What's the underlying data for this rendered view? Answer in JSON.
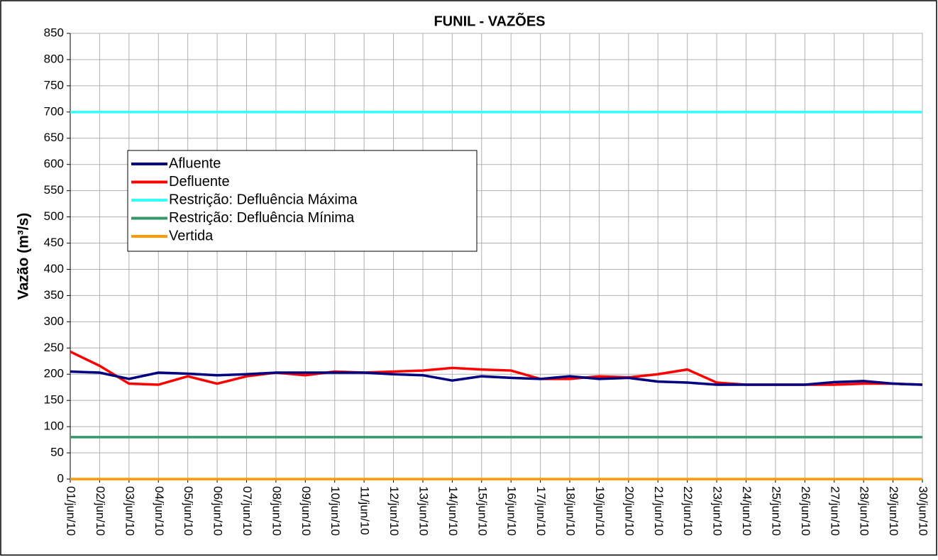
{
  "chart_data": {
    "type": "line",
    "title": "FUNIL - VAZÕES",
    "y_label": "Vazão (m³/s)",
    "categories": [
      "01/jun/10",
      "02/jun/10",
      "03/jun/10",
      "04/jun/10",
      "05/jun/10",
      "06/jun/10",
      "07/jun/10",
      "08/jun/10",
      "09/jun/10",
      "10/jun/10",
      "11/jun/10",
      "12/jun/10",
      "13/jun/10",
      "14/jun/10",
      "15/jun/10",
      "16/jun/10",
      "17/jun/10",
      "18/jun/10",
      "19/jun/10",
      "20/jun/10",
      "21/jun/10",
      "22/jun/10",
      "23/jun/10",
      "24/jun/10",
      "25/jun/10",
      "26/jun/10",
      "27/jun/10",
      "28/jun/10",
      "29/jun/10",
      "30/jun/10"
    ],
    "series": [
      {
        "name": "Afluente",
        "color": "#000080",
        "values": [
          205,
          203,
          191,
          203,
          201,
          198,
          200,
          203,
          203,
          203,
          203,
          200,
          198,
          188,
          196,
          193,
          191,
          196,
          191,
          193,
          186,
          184,
          180,
          180,
          180,
          180,
          185,
          187,
          182,
          180
        ]
      },
      {
        "name": "Defluente",
        "color": "#ff0000",
        "values": [
          243,
          216,
          182,
          180,
          196,
          182,
          196,
          203,
          198,
          205,
          203,
          205,
          207,
          212,
          209,
          207,
          191,
          191,
          196,
          194,
          200,
          209,
          184,
          180,
          180,
          180,
          180,
          182,
          182,
          180
        ]
      },
      {
        "name": "Restrição: Defluência Máxima",
        "color": "#33ffff",
        "values": [
          700,
          700,
          700,
          700,
          700,
          700,
          700,
          700,
          700,
          700,
          700,
          700,
          700,
          700,
          700,
          700,
          700,
          700,
          700,
          700,
          700,
          700,
          700,
          700,
          700,
          700,
          700,
          700,
          700,
          700
        ]
      },
      {
        "name": "Restrição: Defluência Mínima",
        "color": "#339966",
        "values": [
          80,
          80,
          80,
          80,
          80,
          80,
          80,
          80,
          80,
          80,
          80,
          80,
          80,
          80,
          80,
          80,
          80,
          80,
          80,
          80,
          80,
          80,
          80,
          80,
          80,
          80,
          80,
          80,
          80,
          80
        ]
      },
      {
        "name": "Vertida",
        "color": "#ff9900",
        "values": [
          0,
          0,
          0,
          0,
          0,
          0,
          0,
          0,
          0,
          0,
          0,
          0,
          0,
          0,
          0,
          0,
          0,
          0,
          0,
          0,
          0,
          0,
          0,
          0,
          0,
          0,
          0,
          0,
          0,
          0
        ]
      }
    ],
    "ylim": [
      0,
      850
    ],
    "yticks": [
      0,
      50,
      100,
      150,
      200,
      250,
      300,
      350,
      400,
      450,
      500,
      550,
      600,
      650,
      700,
      750,
      800,
      850
    ],
    "grid": true
  }
}
